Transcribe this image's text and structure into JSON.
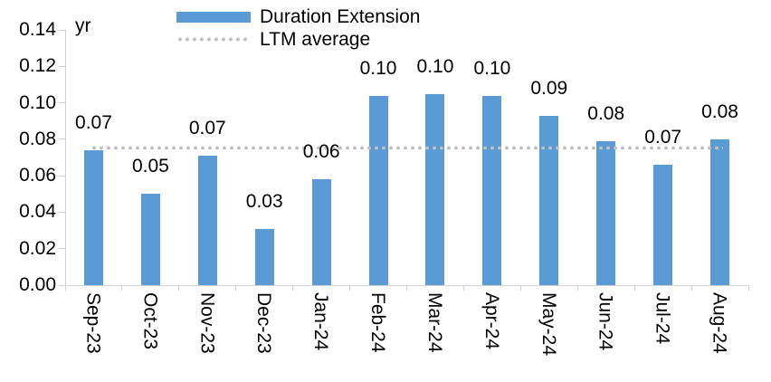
{
  "chart_data": {
    "type": "bar",
    "unit_label": "yr",
    "categories": [
      "Sep-23",
      "Oct-23",
      "Nov-23",
      "Dec-23",
      "Jan-24",
      "Feb-24",
      "Mar-24",
      "Apr-24",
      "May-24",
      "Jun-24",
      "Jul-24",
      "Aug-24"
    ],
    "values": [
      0.074,
      0.05,
      0.071,
      0.031,
      0.058,
      0.104,
      0.105,
      0.104,
      0.093,
      0.079,
      0.066,
      0.08
    ],
    "data_labels": [
      "0.07",
      "0.05",
      "0.07",
      "0.03",
      "0.06",
      "0.10",
      "0.10",
      "0.10",
      "0.09",
      "0.08",
      "0.07",
      "0.08"
    ],
    "ltm_average": 0.075,
    "y_ticks": [
      "0.14",
      "0.12",
      "0.10",
      "0.08",
      "0.06",
      "0.04",
      "0.02",
      "0.00"
    ],
    "ylim": [
      0,
      0.14
    ],
    "xlabel": "",
    "ylabel": "yr",
    "grid": "off",
    "legend_position": "top",
    "legend": [
      {
        "name": "Duration Extension",
        "type": "bar"
      },
      {
        "name": "LTM average",
        "type": "dotted-line"
      }
    ],
    "colors": {
      "bar": "#5b9bd5",
      "average_line": "#bfbfbf",
      "axis": "#d2d2d2",
      "text": "#000000"
    }
  }
}
